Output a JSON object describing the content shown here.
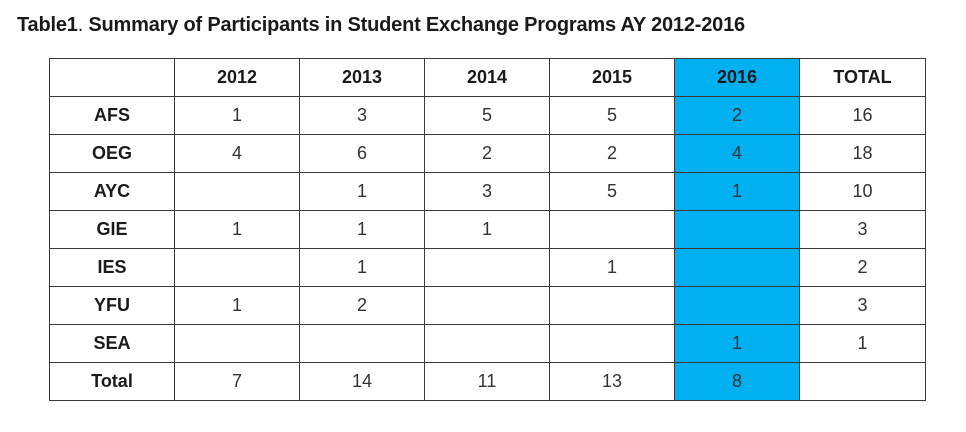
{
  "title": {
    "prefix": "Table1",
    "separator": ".",
    "text": " Summary of Participants in Student Exchange Programs AY 2012-2016"
  },
  "table": {
    "corner": "",
    "columns": [
      "2012",
      "2013",
      "2014",
      "2015",
      "2016",
      "TOTAL"
    ],
    "highlight_column_index": 4,
    "highlight_color": "#00b0f0",
    "rows": [
      {
        "label": "AFS",
        "cells": [
          "1",
          "3",
          "5",
          "5",
          "2",
          "16"
        ]
      },
      {
        "label": "OEG",
        "cells": [
          "4",
          "6",
          "2",
          "2",
          "4",
          "18"
        ]
      },
      {
        "label": "AYC",
        "cells": [
          "",
          "1",
          "3",
          "5",
          "1",
          "10"
        ]
      },
      {
        "label": "GIE",
        "cells": [
          "1",
          "1",
          "1",
          "",
          "",
          "3"
        ]
      },
      {
        "label": "IES",
        "cells": [
          "",
          "1",
          "",
          "1",
          "",
          "2"
        ]
      },
      {
        "label": "YFU",
        "cells": [
          "1",
          "2",
          "",
          "",
          "",
          "3"
        ]
      },
      {
        "label": "SEA",
        "cells": [
          "",
          "",
          "",
          "",
          "1",
          "1"
        ]
      },
      {
        "label": "Total",
        "cells": [
          "7",
          "14",
          "11",
          "13",
          "8",
          ""
        ]
      }
    ]
  }
}
